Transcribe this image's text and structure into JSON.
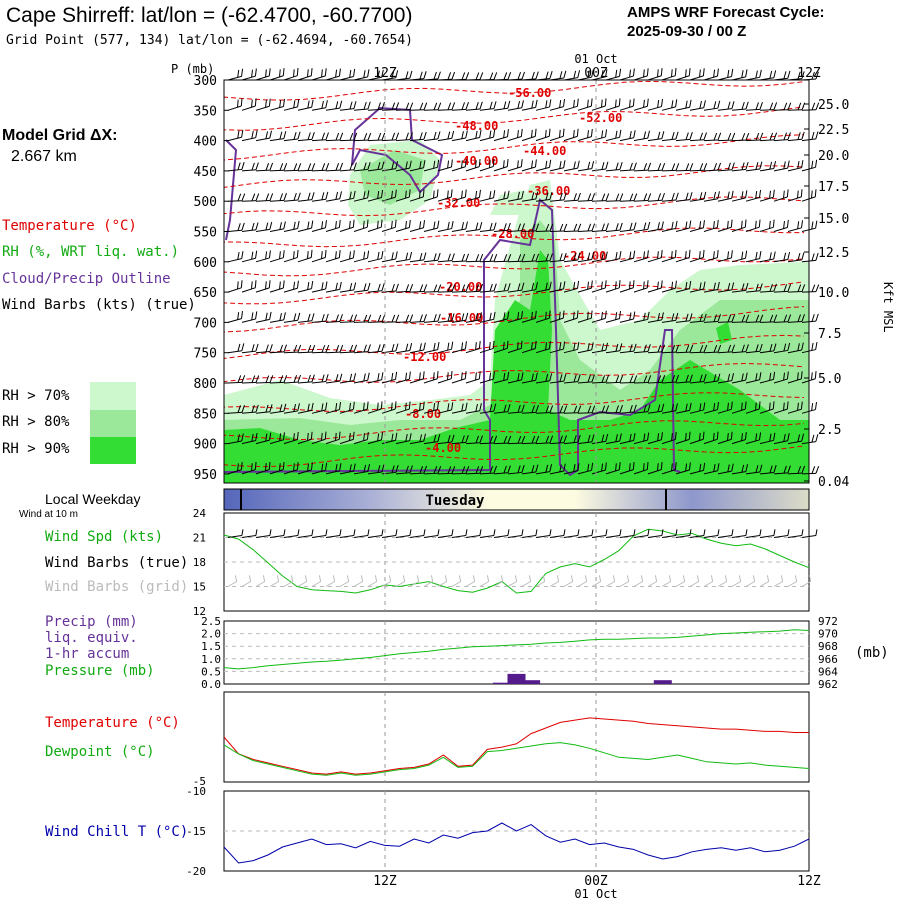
{
  "header": {
    "title": "Cape Shirreff:  lat/lon = (-62.4700, -60.7700)",
    "subtitle": "Grid Point (577, 134) lat/lon = (-62.4694, -60.7654)",
    "cycle_label": "AMPS WRF Forecast Cycle:",
    "cycle_value": "2025-09-30 / 00  Z"
  },
  "side": {
    "model_grid_line1": "Model Grid ΔX:",
    "model_grid_line2": "2.667 km",
    "temperature": "Temperature (°C)",
    "rh": "RH (%, WRT liq. wat.)",
    "cloud": "Cloud/Precip Outline",
    "wind": "Wind Barbs (kts) (true)",
    "rh70": "RH > 70%",
    "rh80": "RH > 80%",
    "rh90": "RH > 90%",
    "local_weekday": "Local Weekday",
    "wind_at_10m": "Wind at 10 m",
    "wind_spd": "Wind Spd (kts)",
    "wind_barbs_true": "Wind Barbs (true)",
    "wind_barbs_grid": "Wind Barbs (grid)",
    "precip1": "Precip (mm)",
    "precip2": "liq. equiv.",
    "precip3": "1-hr accum",
    "pressure": "Pressure (mb)",
    "temp": "Temperature (°C)",
    "dewpoint": "Dewpoint (°C)",
    "windchill": "Wind Chill T (°C)"
  },
  "axes": {
    "p_label": "P (mb)",
    "pressure_levels": [
      "300",
      "350",
      "400",
      "450",
      "500",
      "550",
      "600",
      "650",
      "700",
      "750",
      "800",
      "850",
      "900",
      "950"
    ],
    "height_labels": [
      "25.0",
      "22.5",
      "20.0",
      "17.5",
      "15.0",
      "12.5",
      "10.0",
      "7.5",
      "5.0",
      "2.5",
      "0.04"
    ],
    "height_unit": "Kft MSL",
    "time_top": [
      "12Z",
      "00Z",
      "12Z"
    ],
    "date_label": "01 Oct",
    "weekday": "Tuesday",
    "wind_ticks": [
      "24",
      "21",
      "18",
      "15",
      "12"
    ],
    "precip_ticks": [
      "2.5",
      "2.0",
      "1.5",
      "1.0",
      "0.5",
      "0.0"
    ],
    "pressure_ticks": [
      "972",
      "970",
      "968",
      "966",
      "964",
      "962"
    ],
    "pressure_unit": "(mb)",
    "temp_ticks": [
      "-5"
    ],
    "chill_ticks": [
      "-10",
      "-15",
      "-20"
    ],
    "time_bottom": [
      "12Z",
      "00Z",
      "12Z"
    ]
  },
  "colors": {
    "temperature": "#e00000",
    "rh70": "#cdf7cd",
    "rh80": "#9be89b",
    "rh90": "#33dd33",
    "cloud": "#663399",
    "dewpoint": "#11bb11",
    "windchill": "#0000aa",
    "pressure": "#11bb11",
    "precip": "#551a8b"
  },
  "chart_data": [
    {
      "type": "heatmap",
      "panel": "cross-section",
      "isotherm_labels": [
        "-56.00",
        "-52.00",
        "-48.00",
        "-44.00",
        "-40.00",
        "-36.00",
        "-32.00",
        "-28.00",
        "-24.00",
        "-20.00",
        "-16.00",
        "-12.00",
        "-8.00",
        "-4.00"
      ],
      "ylim": [
        300,
        965
      ]
    },
    {
      "type": "line",
      "panel": "wind speed",
      "ylim": [
        12,
        24
      ],
      "series": [
        {
          "values": [
            21.3,
            20.8,
            19.5,
            17.9,
            16.3,
            15.0,
            14.6,
            14.5,
            14.4,
            14.2,
            14.6,
            15.2,
            15.0,
            15.3,
            15.6,
            15.0,
            14.5,
            14.3,
            14.8,
            15.6,
            14.2,
            14.4,
            16.6,
            17.4,
            17.8,
            17.4,
            18.3,
            19.4,
            21.2,
            22.0,
            21.8,
            21.3,
            21.5,
            20.8,
            20.3,
            20.0,
            20.2,
            19.6,
            18.8,
            18.0,
            17.3
          ]
        }
      ]
    },
    {
      "type": "bar",
      "panel": "precip",
      "ylim": [
        0,
        2.5
      ],
      "values": [
        0,
        0,
        0,
        0,
        0,
        0,
        0,
        0,
        0,
        0,
        0,
        0,
        0,
        0,
        0,
        0,
        0,
        0,
        0,
        0.05,
        0.4,
        0.15,
        0,
        0,
        0,
        0,
        0,
        0,
        0,
        0,
        0.15,
        0,
        0,
        0,
        0,
        0,
        0,
        0,
        0,
        0,
        0
      ]
    },
    {
      "type": "line",
      "panel": "pressure",
      "ylim": [
        962,
        972
      ],
      "series": [
        {
          "values": [
            964.6,
            964.4,
            964.6,
            964.9,
            965.1,
            965.3,
            965.5,
            965.6,
            965.8,
            966.0,
            966.2,
            966.5,
            966.8,
            967.0,
            967.2,
            967.5,
            967.7,
            967.9,
            968.0,
            968.1,
            968.2,
            968.3,
            968.5,
            968.6,
            968.8,
            969.0,
            969.1,
            969.1,
            969.2,
            969.3,
            969.3,
            969.4,
            969.6,
            969.8,
            970.0,
            970.1,
            970.2,
            970.3,
            970.4,
            970.6,
            970.5
          ]
        }
      ]
    },
    {
      "type": "line",
      "panel": "temperature/dewpoint",
      "series": [
        {
          "values": [
            -1.0,
            -2.5,
            -3.0,
            -3.3,
            -3.6,
            -3.9,
            -4.2,
            -4.3,
            -4.1,
            -4.3,
            -4.2,
            -4.0,
            -3.8,
            -3.7,
            -3.4,
            -2.6,
            -3.6,
            -3.5,
            -2.1,
            -1.9,
            -1.6,
            -0.7,
            -0.2,
            0.3,
            0.5,
            0.7,
            0.6,
            0.5,
            0.4,
            0.2,
            0.1,
            0.0,
            -0.1,
            -0.2,
            -0.3,
            -0.3,
            -0.4,
            -0.5,
            -0.5,
            -0.6,
            -0.6
          ]
        },
        {
          "values": [
            -1.7,
            -2.5,
            -3.1,
            -3.4,
            -3.7,
            -4.0,
            -4.3,
            -4.4,
            -4.2,
            -4.4,
            -4.3,
            -4.1,
            -3.9,
            -3.8,
            -3.5,
            -2.8,
            -3.7,
            -3.6,
            -2.3,
            -2.2,
            -2.0,
            -1.8,
            -1.6,
            -1.5,
            -1.7,
            -2.0,
            -2.4,
            -2.8,
            -2.9,
            -3.0,
            -2.8,
            -2.6,
            -2.9,
            -3.2,
            -3.3,
            -3.4,
            -3.3,
            -3.5,
            -3.6,
            -3.7,
            -3.8
          ]
        }
      ]
    },
    {
      "type": "line",
      "panel": "wind chill",
      "ylim": [
        -20,
        -10
      ],
      "series": [
        {
          "values": [
            -17.0,
            -19.0,
            -18.7,
            -18.0,
            -17.0,
            -16.5,
            -16.0,
            -16.7,
            -16.6,
            -17.1,
            -16.3,
            -16.8,
            -16.9,
            -16.0,
            -16.5,
            -15.5,
            -15.9,
            -15.2,
            -15.0,
            -14.0,
            -15.0,
            -14.2,
            -15.6,
            -16.4,
            -16.0,
            -16.7,
            -16.5,
            -17.0,
            -17.3,
            -18.0,
            -18.5,
            -18.2,
            -17.6,
            -17.3,
            -17.1,
            -17.4,
            -17.1,
            -17.6,
            -17.4,
            -16.9,
            -16.0
          ]
        }
      ]
    }
  ]
}
